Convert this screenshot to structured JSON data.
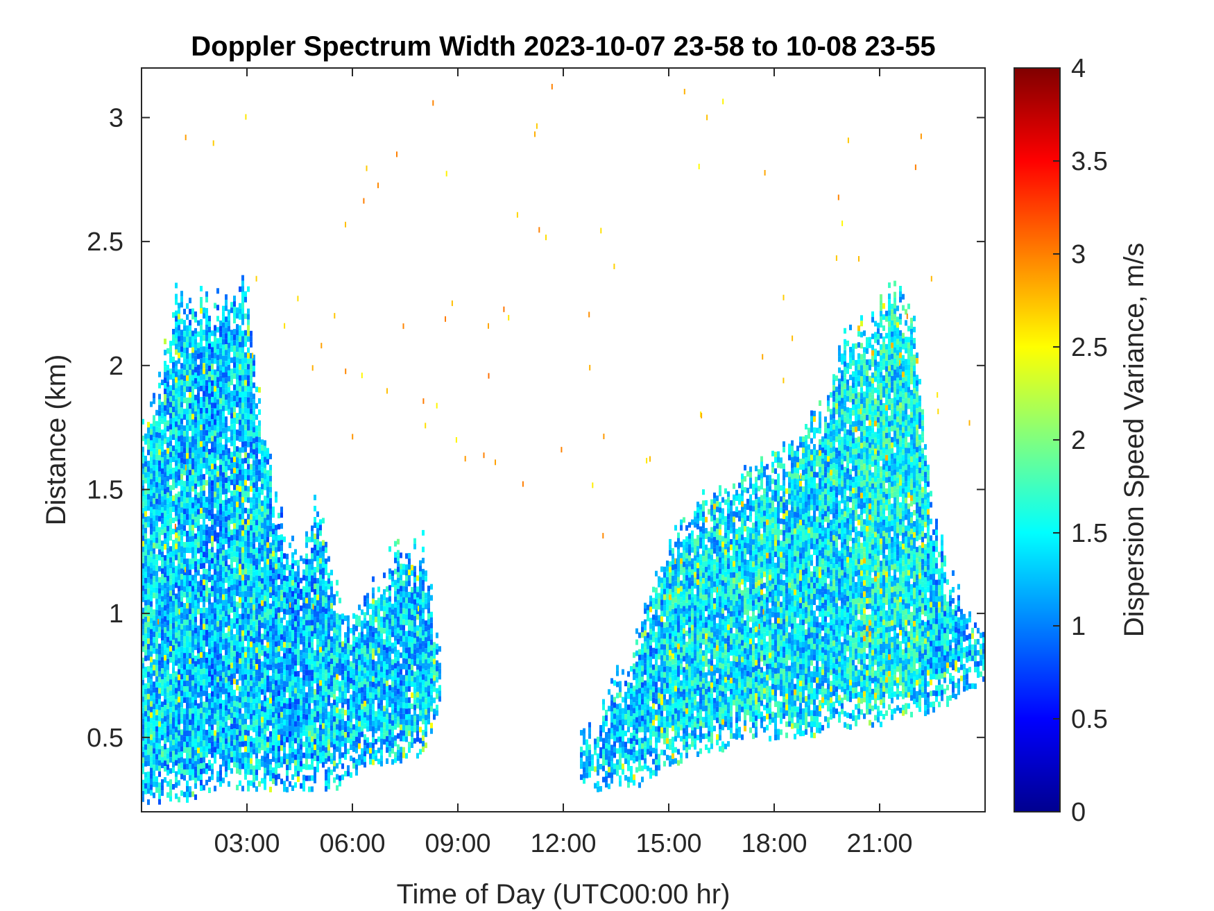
{
  "chart_data": {
    "type": "heatmap",
    "title": "Doppler Spectrum Width 2023-10-07 23-58 to 10-08 23-55",
    "xlabel": "Time of Day (UTC00:00 hr)",
    "ylabel": "Distance (km)",
    "colorbar_label": "Dispersion Speed Variance, m/s",
    "colormap": "jet",
    "x_unit": "hours",
    "xlim": [
      0,
      24
    ],
    "ylim": [
      0.2,
      3.2
    ],
    "clim": [
      0,
      4
    ],
    "x_ticks": [
      {
        "value": 3,
        "label": "03:00"
      },
      {
        "value": 6,
        "label": "06:00"
      },
      {
        "value": 9,
        "label": "09:00"
      },
      {
        "value": 12,
        "label": "12:00"
      },
      {
        "value": 15,
        "label": "15:00"
      },
      {
        "value": 18,
        "label": "18:00"
      },
      {
        "value": 21,
        "label": "21:00"
      }
    ],
    "y_ticks": [
      {
        "value": 0.5,
        "label": "0.5"
      },
      {
        "value": 1,
        "label": "1"
      },
      {
        "value": 1.5,
        "label": "1.5"
      },
      {
        "value": 2,
        "label": "2"
      },
      {
        "value": 2.5,
        "label": "2.5"
      },
      {
        "value": 3,
        "label": "3"
      }
    ],
    "colorbar_ticks": [
      {
        "value": 0,
        "label": "0"
      },
      {
        "value": 0.5,
        "label": "0.5"
      },
      {
        "value": 1,
        "label": "1"
      },
      {
        "value": 1.5,
        "label": "1.5"
      },
      {
        "value": 2,
        "label": "2"
      },
      {
        "value": 2.5,
        "label": "2.5"
      },
      {
        "value": 3,
        "label": "3"
      },
      {
        "value": 3.5,
        "label": "3.5"
      },
      {
        "value": 4,
        "label": "4"
      }
    ],
    "grid": false,
    "coverage": {
      "time_hours": [
        0,
        0.5,
        1,
        1.5,
        2,
        2.5,
        3,
        3.5,
        4,
        4.5,
        5,
        5.5,
        6,
        6.5,
        7,
        7.5,
        8,
        8.5,
        9,
        9.5,
        10,
        10.5,
        11,
        11.5,
        12,
        12.5,
        13,
        13.5,
        14,
        14.5,
        15,
        15.5,
        16,
        16.5,
        17,
        17.5,
        18,
        18.5,
        19,
        19.5,
        20,
        20.5,
        21,
        21.5,
        22,
        22.5,
        23,
        23.5,
        24
      ],
      "bottom_km": [
        0.25,
        0.25,
        0.25,
        0.25,
        0.3,
        0.3,
        0.3,
        0.3,
        0.3,
        0.3,
        0.3,
        0.3,
        0.35,
        0.4,
        0.4,
        0.4,
        0.45,
        0.6,
        null,
        null,
        null,
        null,
        null,
        null,
        null,
        0.3,
        0.3,
        0.3,
        0.3,
        0.35,
        0.4,
        0.4,
        0.45,
        0.45,
        0.5,
        0.5,
        0.5,
        0.5,
        0.5,
        0.55,
        0.55,
        0.55,
        0.55,
        0.6,
        0.6,
        0.6,
        0.65,
        0.7,
        0.7
      ],
      "top_km": [
        1.75,
        1.95,
        2.3,
        2.3,
        2.25,
        2.3,
        2.35,
        1.75,
        1.4,
        1.2,
        1.5,
        1.1,
        1.0,
        1.1,
        1.2,
        1.3,
        1.3,
        0.9,
        null,
        null,
        null,
        null,
        null,
        null,
        null,
        0.5,
        0.6,
        0.75,
        0.85,
        1.1,
        1.3,
        1.4,
        1.5,
        1.5,
        1.6,
        1.6,
        1.65,
        1.7,
        1.75,
        1.85,
        2.15,
        2.15,
        2.25,
        2.3,
        2.25,
        1.4,
        1.2,
        1.0,
        1.0
      ],
      "median_width_m_s": [
        1.4,
        1.3,
        1.3,
        1.3,
        1.2,
        1.3,
        1.3,
        1.3,
        1.2,
        1.2,
        1.3,
        1.3,
        1.3,
        1.3,
        1.3,
        1.3,
        1.3,
        1.4,
        null,
        null,
        null,
        null,
        null,
        null,
        null,
        1.4,
        1.3,
        1.3,
        1.3,
        1.3,
        1.4,
        1.4,
        1.4,
        1.4,
        1.4,
        1.4,
        1.4,
        1.4,
        1.4,
        1.4,
        1.4,
        1.5,
        1.5,
        1.5,
        1.5,
        1.3,
        1.3,
        1.3,
        1.3
      ]
    }
  }
}
